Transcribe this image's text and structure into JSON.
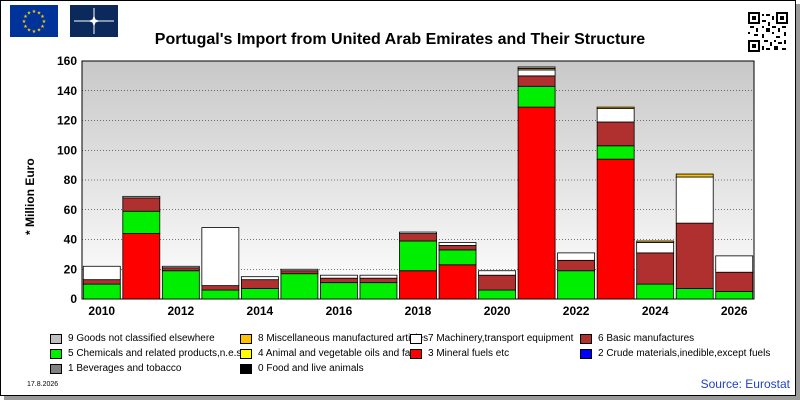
{
  "title": "Portugal's Import from United Arab Emirates and Their Structure",
  "date_label": "17.8.2026",
  "source_label": "Source: Eurostat",
  "icons": [
    "eu-flag-icon",
    "nato-flag-icon",
    "qr-code-icon"
  ],
  "chart_data": {
    "type": "bar",
    "stacked": true,
    "ylabel": "* Million Euro",
    "ylim": [
      0,
      160
    ],
    "yticks": [
      0,
      20,
      40,
      60,
      80,
      100,
      120,
      140,
      160
    ],
    "grid": true,
    "categories": [
      2010,
      2011,
      2012,
      2013,
      2014,
      2015,
      2016,
      2017,
      2018,
      2019,
      2020,
      2021,
      2022,
      2023,
      2024,
      2025,
      2026
    ],
    "xtick_labels": [
      "2010",
      "",
      "2012",
      "",
      "2014",
      "",
      "2016",
      "",
      "2018",
      "",
      "2020",
      "",
      "2022",
      "",
      "2024",
      "",
      "2026"
    ],
    "legend_position": "bottom",
    "series": [
      {
        "name": "0 Food and live animals",
        "color": "#000000",
        "values": [
          0,
          0,
          0,
          0,
          0,
          0,
          0,
          0,
          0,
          0,
          0,
          0,
          0,
          0,
          0,
          0,
          0
        ]
      },
      {
        "name": "1 Beverages and tobacco",
        "color": "#808080",
        "values": [
          0,
          0,
          0,
          0,
          0,
          0,
          0,
          0,
          0,
          0,
          0,
          0,
          0,
          0,
          0,
          0,
          0
        ]
      },
      {
        "name": "2 Crude materials,inedible,except fuels",
        "color": "#0000ff",
        "values": [
          0,
          0,
          0,
          0,
          0,
          0,
          0,
          0,
          0,
          0,
          0,
          0,
          0,
          0,
          0,
          0,
          0
        ]
      },
      {
        "name": "3 Mineral fuels etc",
        "color": "#ff0000",
        "values": [
          0,
          44,
          0,
          0,
          0,
          0,
          0,
          0,
          19,
          23,
          0,
          129,
          0,
          94,
          0,
          0,
          0
        ]
      },
      {
        "name": "5 Chemicals and related products,n.e.s.",
        "color": "#00ee00",
        "values": [
          10,
          15,
          19,
          6,
          7,
          17,
          11,
          11,
          20,
          10,
          6,
          14,
          19,
          9,
          10,
          7,
          5
        ]
      },
      {
        "name": "4 Animal and vegetable oils and fats",
        "color": "#ffff00",
        "values": [
          0,
          0,
          0,
          0,
          0,
          0,
          0,
          0,
          0,
          0,
          0,
          0,
          0,
          0,
          0,
          0,
          0
        ]
      },
      {
        "name": "6 Basic manufactures",
        "color": "#b03030",
        "values": [
          3,
          9,
          2,
          3,
          6,
          2,
          3,
          3,
          5,
          3,
          10,
          7,
          7,
          16,
          21,
          44,
          13
        ]
      },
      {
        "name": "7 Machinery,transport equipment",
        "color": "#ffffff",
        "values": [
          9,
          1,
          1,
          39,
          2,
          1,
          2,
          2,
          1,
          2,
          3,
          4,
          5,
          9,
          7,
          31,
          11
        ]
      },
      {
        "name": "8 Miscellaneous manufactured articles",
        "color": "#ffc000",
        "values": [
          0,
          0,
          0,
          0,
          0,
          0,
          0,
          0,
          0,
          0,
          0,
          1,
          0,
          1,
          1,
          2,
          0
        ]
      },
      {
        "name": "9 Goods not classified elsewhere",
        "color": "#c0c0c0",
        "values": [
          0,
          0,
          0,
          0,
          0,
          0,
          0,
          0,
          0,
          0,
          0,
          1,
          0,
          0,
          0,
          0,
          0
        ]
      }
    ],
    "legend_order": [
      "9 Goods not classified elsewhere",
      "8 Miscellaneous manufactured articles",
      "7 Machinery,transport equipment",
      "6 Basic manufactures",
      "5 Chemicals and related products,n.e.s.",
      "4 Animal and vegetable oils and fats",
      "3 Mineral fuels etc",
      "2 Crude materials,inedible,except fuels",
      "1 Beverages and tobacco",
      "0 Food and live animals"
    ]
  }
}
